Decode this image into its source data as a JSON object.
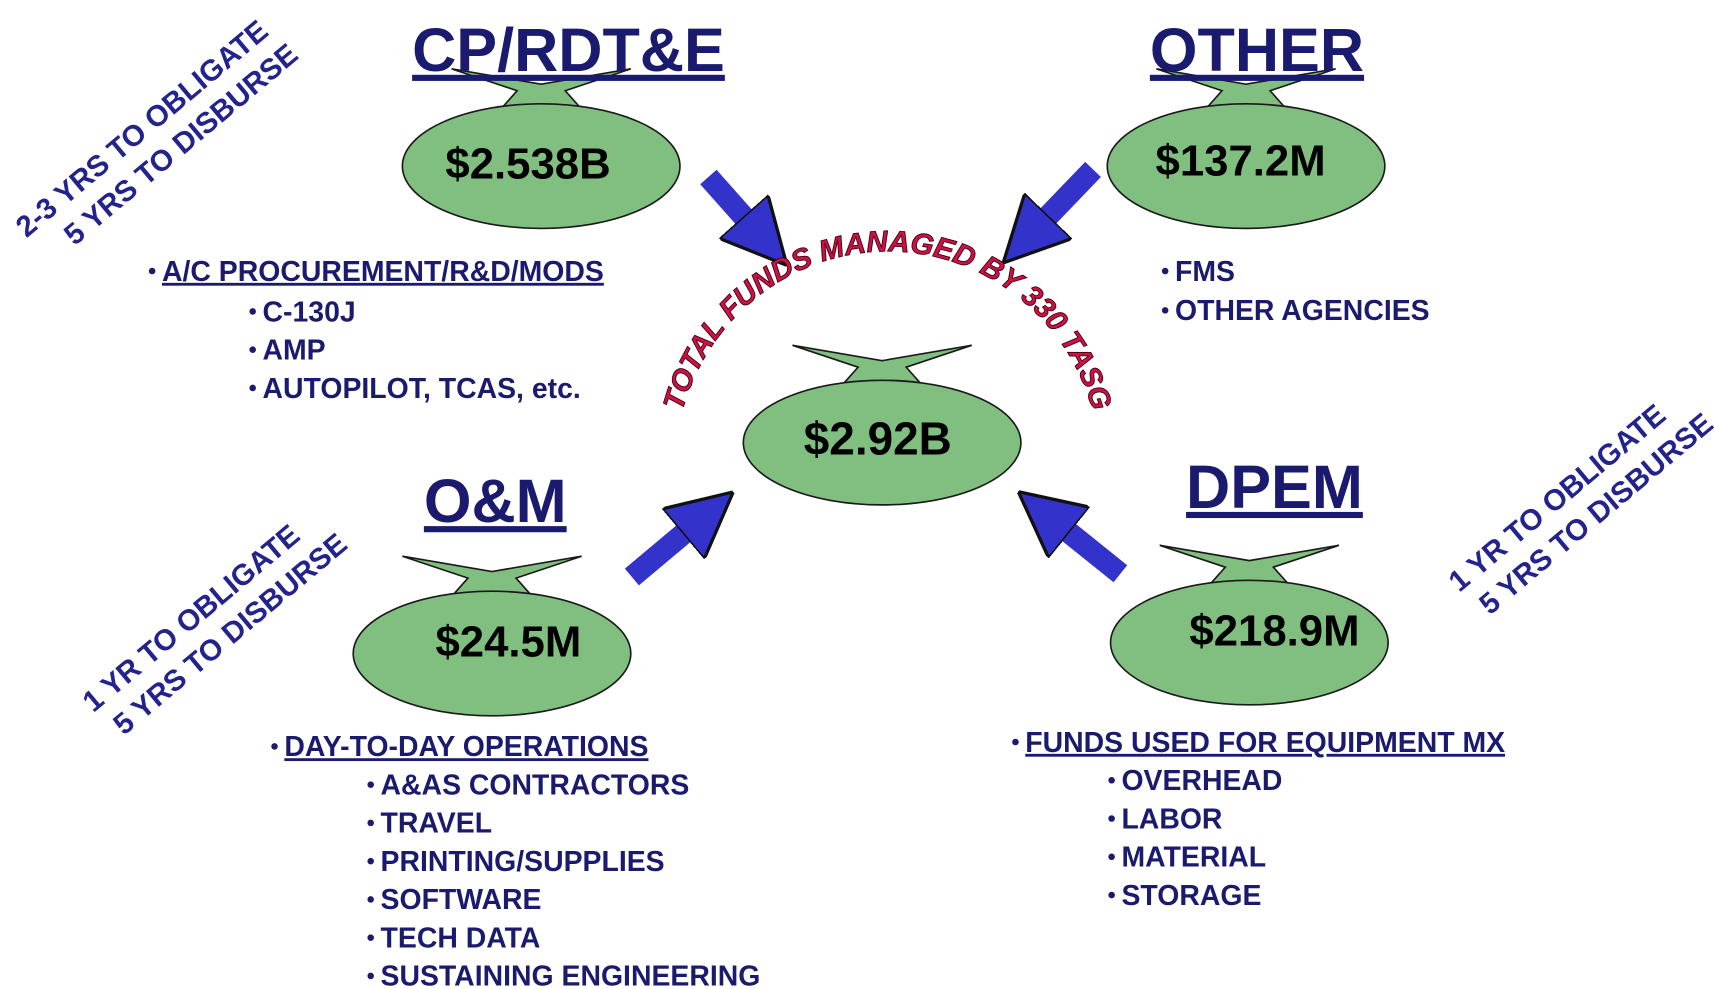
{
  "bags": [
    {
      "title": "CP/RDT&E",
      "amount": "$2.538B",
      "header": "A/C PROCUREMENT/R&D/MODS",
      "items": [
        "C-130J",
        "AMP",
        "AUTOPILOT, TCAS, etc."
      ]
    },
    {
      "title": "OTHER",
      "amount": "$137.2M",
      "items": [
        "FMS",
        "OTHER AGENCIES"
      ]
    },
    {
      "title": "O&M",
      "amount": "$24.5M",
      "header": "DAY-TO-DAY OPERATIONS",
      "items": [
        "A&AS CONTRACTORS",
        "TRAVEL",
        "PRINTING/SUPPLIES",
        "SOFTWARE",
        "TECH DATA",
        "SUSTAINING ENGINEERING"
      ]
    },
    {
      "title": "DPEM",
      "amount": "$218.9M",
      "header": "FUNDS USED FOR EQUIPMENT MX",
      "items": [
        "OVERHEAD",
        "LABOR",
        "MATERIAL",
        "STORAGE"
      ]
    }
  ],
  "total": {
    "label": "TOTAL FUNDS MANAGED BY 330 TASG",
    "amount": "$2.92B"
  },
  "notes": [
    [
      "2-3 YRS TO OBLIGATE",
      "5 YRS TO DISBURSE"
    ],
    [
      "1 YR TO OBLIGATE",
      "5 YRS TO DISBURSE"
    ],
    [
      "1 YR TO OBLIGATE",
      "5 YRS TO DISBURSE"
    ]
  ]
}
